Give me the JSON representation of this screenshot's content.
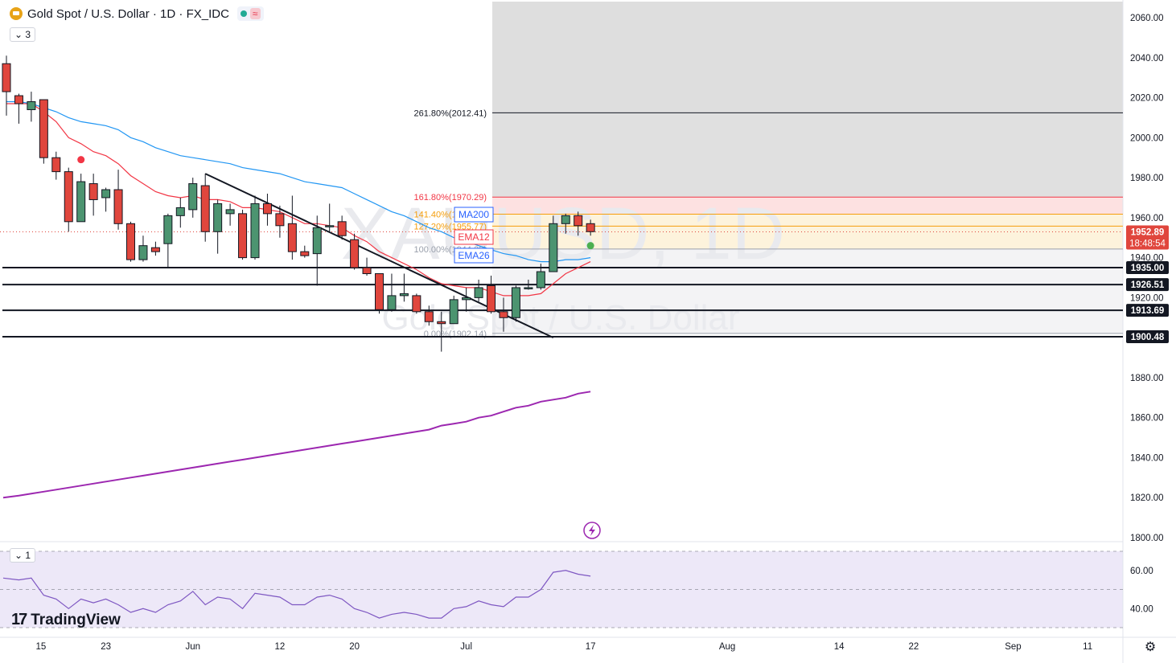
{
  "header": {
    "title": "Gold Spot / U.S. Dollar · 1D · FX_IDC",
    "indicator_count": "3",
    "rsi_count": "1",
    "wave_icon": "≈"
  },
  "watermark": {
    "symbol": "XAUUSD, 1D",
    "name": "Gold Spot / U.S. Dollar"
  },
  "branding": {
    "name": "TradingView",
    "mark": "17"
  },
  "colors": {
    "up": "#4c9470",
    "down": "#e0463d",
    "ema12": "#f23645",
    "ema26": "#2196f3",
    "ma200": "#9c27b0",
    "rsi": "#7e57c2",
    "trendline": "#131722"
  },
  "chart_data": {
    "type": "candlestick",
    "ylim": [
      1800,
      2065
    ],
    "y_ticks": [
      "2060.00",
      "2040.00",
      "2020.00",
      "2000.00",
      "1980.00",
      "1960.00",
      "1940.00",
      "1920.00",
      "1900.00",
      "1880.00",
      "1860.00",
      "1840.00",
      "1820.00",
      "1800.00"
    ],
    "y_tick_values": [
      2060,
      2040,
      2020,
      2000,
      1980,
      1960,
      1940,
      1920,
      1900,
      1880,
      1860,
      1840,
      1820,
      1800
    ],
    "x_tick_labels": [
      {
        "label": "15",
        "idx": 2
      },
      {
        "label": "23",
        "idx": 8
      },
      {
        "label": "Jun",
        "idx": 15
      },
      {
        "label": "12",
        "idx": 22
      },
      {
        "label": "20",
        "idx": 28
      },
      {
        "label": "Jul",
        "idx": 37
      },
      {
        "label": "17",
        "idx": 47
      },
      {
        "label": "Aug",
        "idx": 58
      },
      {
        "label": "14",
        "idx": 67
      },
      {
        "label": "22",
        "idx": 73
      },
      {
        "label": "Sep",
        "idx": 81
      },
      {
        "label": "11",
        "idx": 87
      }
    ],
    "candles": [
      [
        2037,
        2041,
        2011,
        2023
      ],
      [
        2021,
        2022,
        2007,
        2017
      ],
      [
        2014,
        2023,
        2008,
        2018
      ],
      [
        2019,
        2019,
        1987,
        1990
      ],
      [
        1990,
        1993,
        1979,
        1983
      ],
      [
        1983,
        1985,
        1953,
        1958
      ],
      [
        1958,
        1982,
        1958,
        1978
      ],
      [
        1977,
        1982,
        1961,
        1969
      ],
      [
        1970,
        1975,
        1963,
        1974
      ],
      [
        1974,
        1984,
        1954,
        1957
      ],
      [
        1957,
        1958,
        1938,
        1939
      ],
      [
        1939,
        1951,
        1938,
        1946
      ],
      [
        1945,
        1948,
        1941,
        1943
      ],
      [
        1947,
        1962,
        1935,
        1961
      ],
      [
        1961,
        1970,
        1955,
        1965
      ],
      [
        1964,
        1980,
        1960,
        1977
      ],
      [
        1976,
        1982,
        1948,
        1953
      ],
      [
        1953,
        1969,
        1942,
        1967
      ],
      [
        1962,
        1967,
        1956,
        1964
      ],
      [
        1962,
        1964,
        1939,
        1940
      ],
      [
        1940,
        1971,
        1939,
        1967
      ],
      [
        1967,
        1972,
        1956,
        1962
      ],
      [
        1962,
        1966,
        1950,
        1956
      ],
      [
        1957,
        1971,
        1939,
        1943
      ],
      [
        1943,
        1946,
        1940,
        1941
      ],
      [
        1942,
        1961,
        1926,
        1955
      ],
      [
        1956,
        1967,
        1953,
        1956
      ],
      [
        1958,
        1961,
        1949,
        1951
      ],
      [
        1949,
        1952,
        1934,
        1935
      ],
      [
        1935,
        1940,
        1931,
        1932
      ],
      [
        1932,
        1932,
        1912,
        1914
      ],
      [
        1914,
        1932,
        1913,
        1921
      ],
      [
        1921,
        1932,
        1918,
        1922
      ],
      [
        1921,
        1922,
        1912,
        1913
      ],
      [
        1913,
        1916,
        1906,
        1908
      ],
      [
        1908,
        1913,
        1893,
        1907
      ],
      [
        1907,
        1921,
        1907,
        1919
      ],
      [
        1919,
        1925,
        1913,
        1920
      ],
      [
        1920,
        1929,
        1918,
        1925
      ],
      [
        1926,
        1931,
        1912,
        1913
      ],
      [
        1913,
        1920,
        1903,
        1910
      ],
      [
        1910,
        1926,
        1908,
        1925
      ],
      [
        1925,
        1929,
        1924,
        1925
      ],
      [
        1925,
        1937,
        1924,
        1933
      ],
      [
        1933,
        1961,
        1933,
        1957
      ],
      [
        1957,
        1962,
        1952,
        1961
      ],
      [
        1961,
        1963,
        1951,
        1956
      ],
      [
        1957,
        1959,
        1951,
        1953
      ]
    ],
    "series": [
      {
        "name": "EMA12",
        "values": [
          2017,
          2017,
          2017,
          2013,
          2008,
          2000,
          1997,
          1993,
          1991,
          1987,
          1981,
          1977,
          1973,
          1971,
          1970,
          1971,
          1969,
          1969,
          1968,
          1965,
          1965,
          1964,
          1963,
          1960,
          1957,
          1957,
          1956,
          1955,
          1951,
          1948,
          1943,
          1940,
          1937,
          1934,
          1930,
          1927,
          1926,
          1925,
          1925,
          1923,
          1921,
          1921,
          1921,
          1922,
          1927,
          1932,
          1935,
          1938
        ]
      },
      {
        "name": "EMA26",
        "values": [
          2018,
          2018,
          2017,
          2015,
          2013,
          2010,
          2008,
          2007,
          2006,
          2004,
          2000,
          1998,
          1995,
          1993,
          1991,
          1990,
          1989,
          1988,
          1987,
          1985,
          1984,
          1983,
          1982,
          1980,
          1978,
          1977,
          1976,
          1975,
          1972,
          1969,
          1966,
          1963,
          1961,
          1958,
          1955,
          1953,
          1950,
          1948,
          1946,
          1944,
          1942,
          1941,
          1939,
          1938,
          1938,
          1939,
          1939,
          1940
        ]
      },
      {
        "name": "MA200",
        "values": [
          1820,
          1821,
          1822,
          1823,
          1824,
          1825,
          1826,
          1827,
          1828,
          1829,
          1830,
          1831,
          1832,
          1833,
          1834,
          1835,
          1836,
          1837,
          1838,
          1839,
          1840,
          1841,
          1842,
          1843,
          1844,
          1845,
          1846,
          1847,
          1848,
          1849,
          1850,
          1851,
          1852,
          1853,
          1854,
          1856,
          1857,
          1858,
          1860,
          1861,
          1863,
          1865,
          1866,
          1868,
          1869,
          1870,
          1872,
          1873
        ]
      }
    ],
    "ema_labels": [
      "MA200",
      "EMA12",
      "EMA26"
    ],
    "fib_levels": [
      {
        "label": "261.80%(2012.41)",
        "value": 2012.41
      },
      {
        "label": "161.80%(1970.29)",
        "value": 1970.29
      },
      {
        "label": "141.40%(1961.77)",
        "value": 1961.77
      },
      {
        "label": "127.20%(1955.77)",
        "value": 1955.77
      },
      {
        "label": "100.00%(1944.33)",
        "value": 1944.33
      },
      {
        "label": "0.00%(1902.14)",
        "value": 1902.14
      }
    ],
    "horizontal_levels": [
      {
        "label": "1935.00",
        "value": 1935.0
      },
      {
        "label": "1926.51",
        "value": 1926.51
      },
      {
        "label": "1913.69",
        "value": 1913.69
      },
      {
        "label": "1900.48",
        "value": 1900.48
      }
    ],
    "trendline": {
      "from": [
        16,
        1982
      ],
      "to": [
        44,
        1900
      ]
    },
    "last_price": {
      "value": 1952.89,
      "label": "1952.89",
      "countdown": "18:48:54"
    },
    "signal_markers": [
      {
        "idx": 6,
        "value": 1989,
        "color": "#f23645"
      },
      {
        "idx": 47,
        "value": 1946,
        "color": "#4caf50"
      }
    ],
    "rsi": {
      "ylim": [
        25,
        75
      ],
      "ticks": [
        "60.00",
        "40.00"
      ],
      "tick_values": [
        60,
        40
      ],
      "bands": [
        70,
        50,
        30
      ],
      "values": [
        56,
        55,
        56,
        47,
        45,
        40,
        45,
        43,
        45,
        42,
        38,
        40,
        38,
        42,
        44,
        49,
        42,
        46,
        45,
        40,
        48,
        47,
        46,
        42,
        42,
        46,
        47,
        45,
        40,
        38,
        35,
        37,
        38,
        37,
        35,
        35,
        40,
        41,
        44,
        42,
        41,
        46,
        46,
        50,
        59,
        60,
        58,
        57
      ]
    },
    "grid": false
  }
}
